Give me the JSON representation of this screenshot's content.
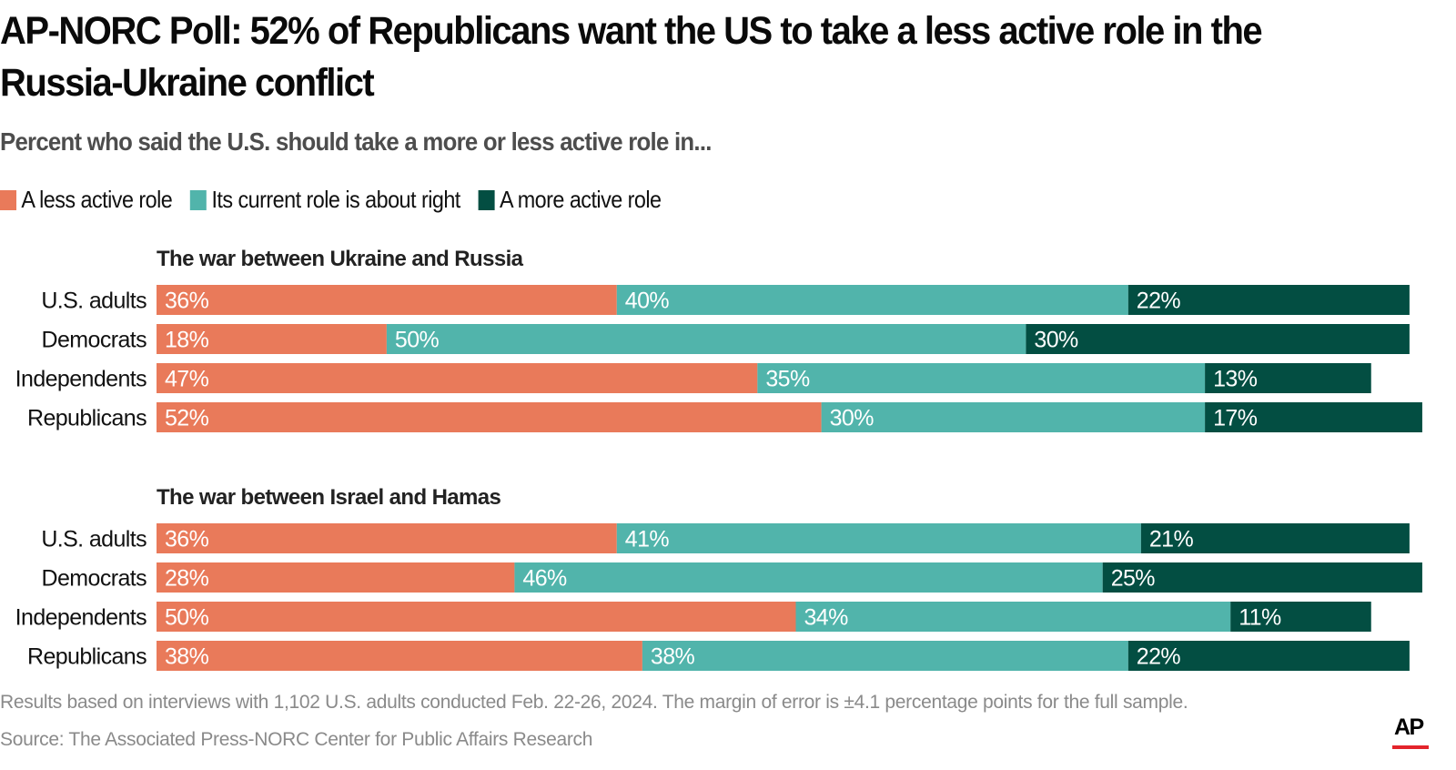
{
  "title": "AP-NORC Poll: 52% of Republicans want the US to take a less active role in the Russia-Ukraine conflict",
  "subtitle": "Percent who said the U.S. should take a more or less active role in...",
  "legend": [
    {
      "label": "A less active role",
      "color": "#e97a5a"
    },
    {
      "label": "Its current role is about right",
      "color": "#51b4ab"
    },
    {
      "label": "A more active role",
      "color": "#034e42"
    }
  ],
  "footer": {
    "note": "Results based on interviews with 1,102 U.S. adults conducted Feb. 22-26, 2024. The margin of error is ±4.1 percentage points for the full sample.",
    "source": "Source: The Associated Press-NORC Center for Public Affairs Research",
    "logo": "AP",
    "logo_accent_color": "#e3242b"
  },
  "chart_data": {
    "type": "bar",
    "orientation": "horizontal",
    "stacked": true,
    "title": "AP-NORC Poll: 52% of Republicans want the US to take a less active role in the Russia-Ukraine conflict",
    "subtitle": "Percent who said the U.S. should take a more or less active role in...",
    "xlabel": "",
    "ylabel": "",
    "xlim": [
      0,
      100
    ],
    "grid": false,
    "legend_position": "top-left",
    "unit": "%",
    "series_names": [
      "A less active role",
      "Its current role is about right",
      "A more active role"
    ],
    "series_colors": [
      "#e97a5a",
      "#51b4ab",
      "#034e42"
    ],
    "panels": [
      {
        "title": "The war between Ukraine and Russia",
        "categories": [
          "U.S. adults",
          "Democrats",
          "Independents",
          "Republicans"
        ],
        "series": [
          {
            "name": "A less active role",
            "values": [
              36,
              18,
              47,
              52
            ]
          },
          {
            "name": "Its current role is about right",
            "values": [
              40,
              50,
              35,
              30
            ]
          },
          {
            "name": "A more active role",
            "values": [
              22,
              30,
              13,
              17
            ]
          }
        ]
      },
      {
        "title": "The war between Israel and Hamas",
        "categories": [
          "U.S. adults",
          "Democrats",
          "Independents",
          "Republicans"
        ],
        "series": [
          {
            "name": "A less active role",
            "values": [
              36,
              28,
              50,
              38
            ]
          },
          {
            "name": "Its current role is about right",
            "values": [
              41,
              46,
              34,
              38
            ]
          },
          {
            "name": "A more active role",
            "values": [
              21,
              25,
              11,
              22
            ]
          }
        ]
      }
    ]
  }
}
